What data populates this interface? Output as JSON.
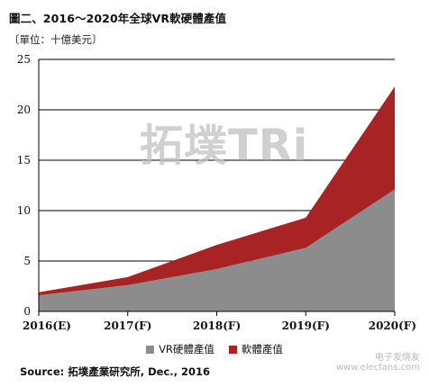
{
  "header": {
    "title": "圖二、2016～2020年全球VR軟硬體產值",
    "unit": "〔單位：十億美元〕"
  },
  "watermark": {
    "logo_text": "拓墣TRi",
    "site_name": "电子发烧友",
    "site_url": "www.elecfans.com"
  },
  "source": "Source: 拓墣產業研究所, Dec., 2016",
  "colors": {
    "hardware": "#8c8c8c",
    "software": "#a82424",
    "grid": "#000000"
  },
  "chart_data": {
    "type": "area",
    "stacked": true,
    "categories": [
      "2016(E)",
      "2017(F)",
      "2018(F)",
      "2019(F)",
      "2020(F)"
    ],
    "series": [
      {
        "name": "VR硬體產值",
        "values": [
          1.6,
          2.6,
          4.2,
          6.3,
          12.1
        ]
      },
      {
        "name": "軟體產值",
        "values": [
          0.3,
          0.8,
          2.4,
          3.0,
          10.2
        ]
      }
    ],
    "ylim": [
      0,
      25
    ],
    "yticks": [
      "0",
      "5",
      "10",
      "15",
      "20",
      "25"
    ],
    "grid": true,
    "legend_position": "bottom"
  }
}
